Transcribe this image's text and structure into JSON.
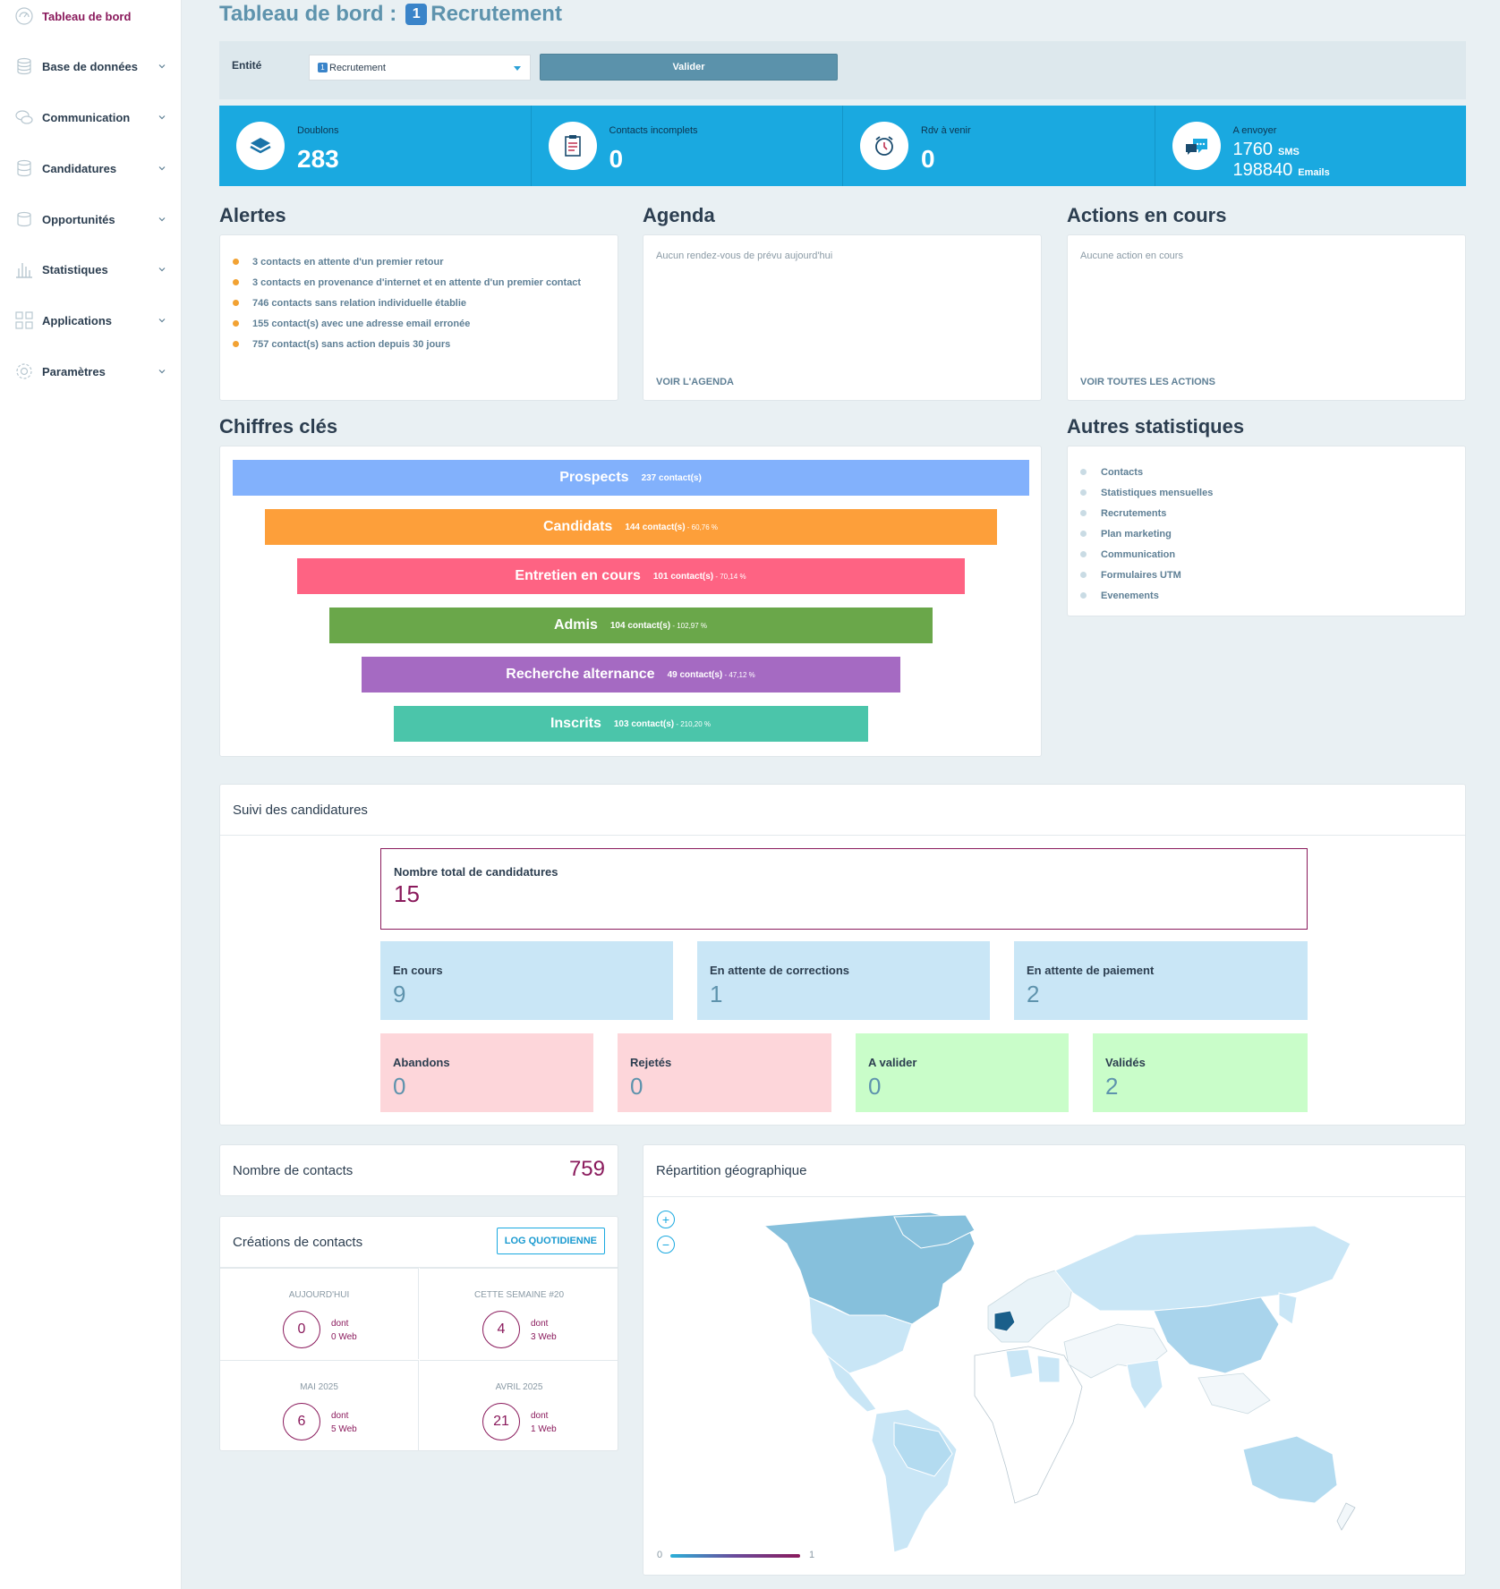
{
  "sidebar": {
    "items": [
      {
        "label": "Tableau de bord",
        "icon": "dashboard-icon",
        "active": true,
        "chevron": false
      },
      {
        "label": "Base de données",
        "icon": "database-icon",
        "chevron": true
      },
      {
        "label": "Communication",
        "icon": "chat-bubbles-icon",
        "chevron": true
      },
      {
        "label": "Candidatures",
        "icon": "stack-icon",
        "chevron": true
      },
      {
        "label": "Opportunités",
        "icon": "coins-icon",
        "chevron": true
      },
      {
        "label": "Statistiques",
        "icon": "bar-chart-icon",
        "chevron": true
      },
      {
        "label": "Applications",
        "icon": "apps-grid-icon",
        "chevron": true
      },
      {
        "label": "Paramètres",
        "icon": "gear-icon",
        "chevron": true
      }
    ]
  },
  "header": {
    "title": "Tableau de bord :",
    "badge": "1",
    "entity_name": "Recrutement"
  },
  "entity": {
    "label": "Entité",
    "selected_badge": "1",
    "selected": "Recrutement",
    "validate_label": "Valider"
  },
  "stats": [
    {
      "label": "Doublons",
      "value": "283",
      "icon": "layers-icon"
    },
    {
      "label": "Contacts incomplets",
      "value": "0",
      "icon": "clipboard-icon"
    },
    {
      "label": "Rdv à venir",
      "value": "0",
      "icon": "alarm-clock-icon"
    },
    {
      "label": "A envoyer",
      "sms": "1760",
      "sms_unit": "SMS",
      "emails": "198840",
      "emails_unit": "Emails",
      "icon": "chat-icon"
    }
  ],
  "alerts": {
    "title": "Alertes",
    "items": [
      "3 contacts en attente d'un premier retour",
      "3 contacts en provenance d'internet et en attente d'un premier contact",
      "746 contacts sans relation individuelle établie",
      "155 contact(s) avec une adresse email erronée",
      "757 contact(s) sans action depuis 30 jours"
    ]
  },
  "agenda": {
    "title": "Agenda",
    "empty": "Aucun rendez-vous de prévu aujourd'hui",
    "link": "VOIR L'AGENDA"
  },
  "actions": {
    "title": "Actions en cours",
    "empty": "Aucune action en cours",
    "link": "VOIR TOUTES LES ACTIONS"
  },
  "key_figures": {
    "title": "Chiffres clés"
  },
  "chart_data": {
    "type": "bar",
    "categories": [
      "Prospects",
      "Candidats",
      "Entretien en cours",
      "Admis",
      "Recherche alternance",
      "Inscrits"
    ],
    "values": [
      237,
      144,
      101,
      104,
      49,
      103
    ],
    "count_labels": [
      "237 contact(s)",
      "144 contact(s)",
      "101 contact(s)",
      "104 contact(s)",
      "49 contact(s)",
      "103 contact(s)"
    ],
    "percent_labels": [
      "",
      "- 60,76 %",
      "- 70,14 %",
      "- 102,97 %",
      "- 47,12 %",
      "- 210,20 %"
    ],
    "colors": [
      "#82b1fc",
      "#fd9f3a",
      "#fe6383",
      "#6aa74a",
      "#a56ac2",
      "#4bc5aa"
    ]
  },
  "other_stats": {
    "title": "Autres statistiques",
    "items": [
      "Contacts",
      "Statistiques mensuelles",
      "Recrutements",
      "Plan marketing",
      "Communication",
      "Formulaires UTM",
      "Evenements"
    ]
  },
  "applications": {
    "title": "Suivi des candidatures",
    "total": {
      "label": "Nombre total de candidatures",
      "value": "15"
    },
    "row1": [
      {
        "label": "En cours",
        "value": "9"
      },
      {
        "label": "En attente de corrections",
        "value": "1"
      },
      {
        "label": "En attente de paiement",
        "value": "2"
      }
    ],
    "row2": [
      {
        "label": "Abandons",
        "value": "0"
      },
      {
        "label": "Rejetés",
        "value": "0"
      },
      {
        "label": "A valider",
        "value": "0"
      },
      {
        "label": "Validés",
        "value": "2"
      }
    ]
  },
  "contacts": {
    "label": "Nombre de contacts",
    "value": "759"
  },
  "creations": {
    "title": "Créations de contacts",
    "log_button": "LOG QUOTIDIENNE",
    "cells": [
      {
        "title": "AUJOURD'HUI",
        "value": "0",
        "dont": "dont",
        "web": "0 Web"
      },
      {
        "title": "CETTE SEMAINE #20",
        "value": "4",
        "dont": "dont",
        "web": "3 Web"
      },
      {
        "title": "MAI 2025",
        "value": "6",
        "dont": "dont",
        "web": "5 Web"
      },
      {
        "title": "AVRIL 2025",
        "value": "21",
        "dont": "dont",
        "web": "1 Web"
      }
    ]
  },
  "geo": {
    "title": "Répartition géographique",
    "zoom_in": "+",
    "zoom_out": "−",
    "legend_min": "0",
    "legend_max": "1"
  },
  "colors": {
    "accent": "#1aa9e0",
    "brand": "#8a1a5c",
    "title_blue": "#5e93ad",
    "alert_dot": "#f2a233"
  }
}
